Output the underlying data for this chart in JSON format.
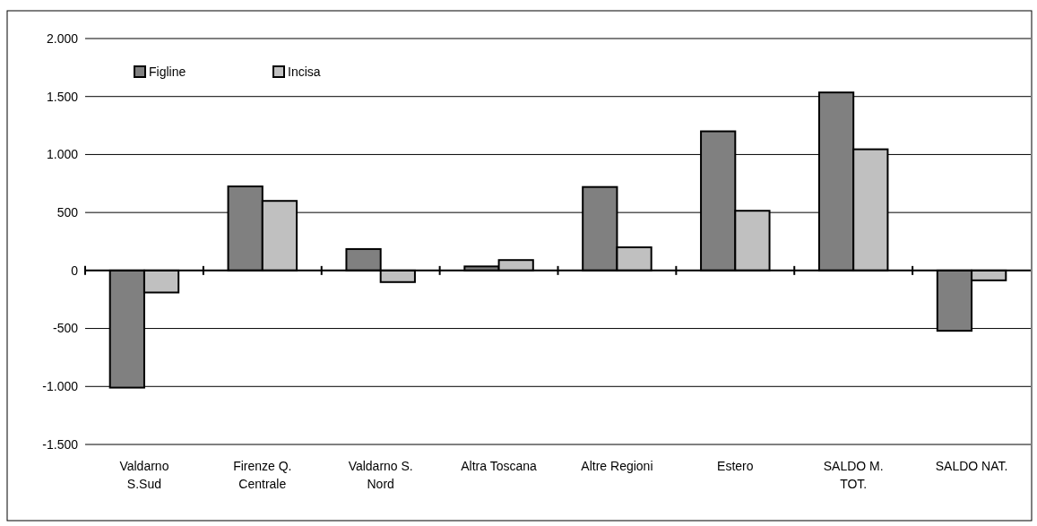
{
  "chart_data": {
    "type": "bar",
    "categories": [
      "Valdarno\nS.Sud",
      "Firenze Q.\nCentrale",
      "Valdarno S.\nNord",
      "Altra Toscana",
      "Altre Regioni",
      "Estero",
      "SALDO M.\nTOT.",
      "SALDO NAT."
    ],
    "series": [
      {
        "name": "Figline",
        "color": "#808080",
        "values": [
          -1010,
          725,
          185,
          35,
          720,
          1200,
          1535,
          -520
        ]
      },
      {
        "name": "Incisa",
        "color": "#c0c0c0",
        "values": [
          -190,
          600,
          -100,
          90,
          200,
          515,
          1045,
          -85
        ]
      }
    ],
    "ylim": [
      -1500,
      2000
    ],
    "yticks": [
      {
        "value": -1500,
        "label": "-1.500"
      },
      {
        "value": -1000,
        "label": "-1.000"
      },
      {
        "value": -500,
        "label": "-500"
      },
      0,
      500,
      {
        "value": 1000,
        "label": "1.000"
      },
      {
        "value": 1500,
        "label": "1.500"
      },
      {
        "value": 2000,
        "label": "2.000"
      }
    ],
    "grid": "y",
    "legend": "top left"
  }
}
